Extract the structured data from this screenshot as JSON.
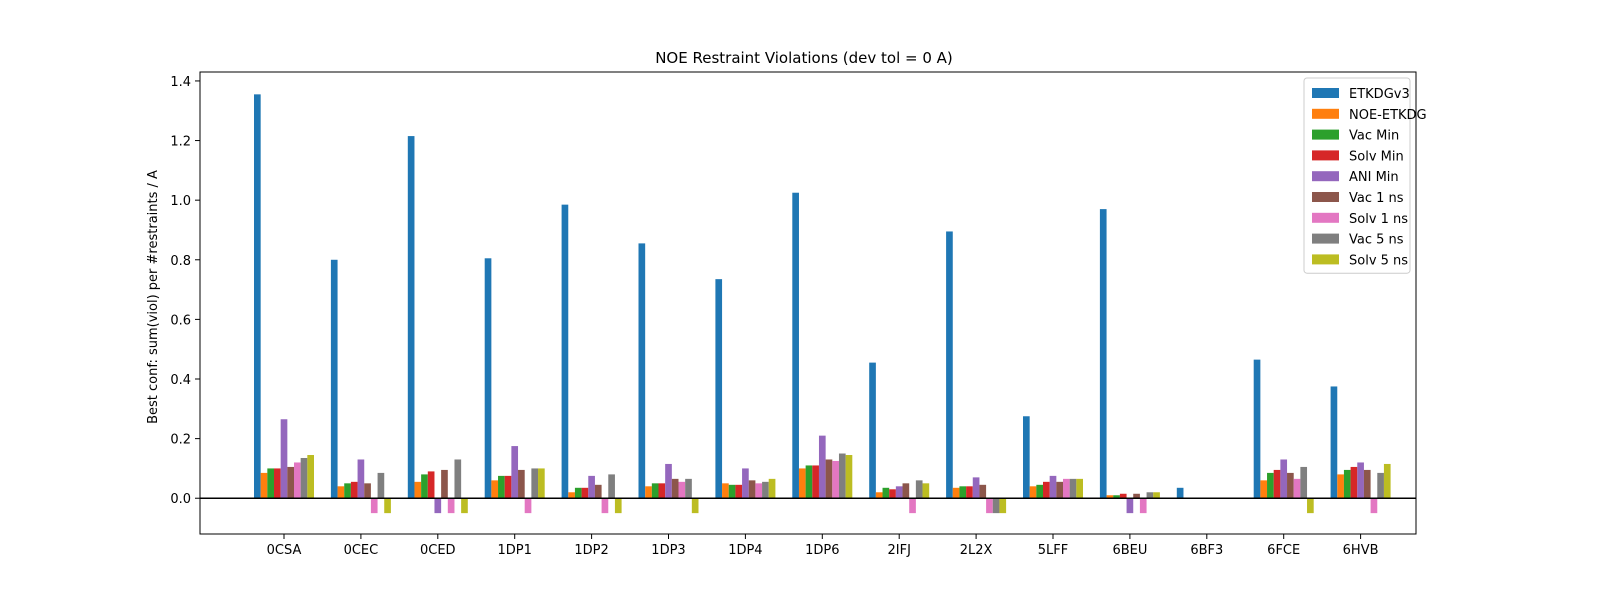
{
  "chart_data": {
    "type": "bar",
    "title": "NOE Restraint Violations (dev tol = 0 A)",
    "xlabel": "",
    "ylabel": "Best conf: sum(viol) per #restraints / A",
    "ylim": [
      -0.12,
      1.43
    ],
    "yticks": [
      0.0,
      0.2,
      0.4,
      0.6,
      0.8,
      1.0,
      1.2,
      1.4
    ],
    "ytick_labels": [
      "0.0",
      "0.2",
      "0.4",
      "0.6",
      "0.8",
      "1.0",
      "1.2",
      "1.4"
    ],
    "grid": false,
    "legend_position": "top-right",
    "categories": [
      "0CSA",
      "0CEC",
      "0CED",
      "1DP1",
      "1DP2",
      "1DP3",
      "1DP4",
      "1DP6",
      "2IFJ",
      "2L2X",
      "5LFF",
      "6BEU",
      "6BF3",
      "6FCE",
      "6HVB"
    ],
    "series": [
      {
        "name": "ETKDGv3",
        "color": "#1f77b4",
        "values": [
          1.355,
          0.8,
          1.215,
          0.805,
          0.985,
          0.855,
          0.735,
          1.025,
          0.455,
          0.895,
          0.275,
          0.97,
          0.035,
          0.465,
          0.375
        ]
      },
      {
        "name": "NOE-ETKDG",
        "color": "#ff7f0e",
        "values": [
          0.085,
          0.04,
          0.055,
          0.06,
          0.02,
          0.04,
          0.05,
          0.1,
          0.02,
          0.035,
          0.04,
          0.01,
          0.0,
          0.06,
          0.08
        ]
      },
      {
        "name": "Vac Min",
        "color": "#2ca02c",
        "values": [
          0.1,
          0.05,
          0.08,
          0.075,
          0.035,
          0.05,
          0.045,
          0.11,
          0.035,
          0.04,
          0.045,
          0.01,
          0.0,
          0.085,
          0.095
        ]
      },
      {
        "name": "Solv Min",
        "color": "#d62728",
        "values": [
          0.1,
          0.055,
          0.09,
          0.075,
          0.035,
          0.05,
          0.045,
          0.11,
          0.03,
          0.04,
          0.055,
          0.015,
          0.0,
          0.095,
          0.105
        ]
      },
      {
        "name": "ANI Min",
        "color": "#9467bd",
        "values": [
          0.265,
          0.13,
          -0.05,
          0.175,
          0.075,
          0.115,
          0.1,
          0.21,
          0.04,
          0.07,
          0.075,
          -0.05,
          0.0,
          0.13,
          0.12
        ]
      },
      {
        "name": "Vac 1 ns",
        "color": "#8c564b",
        "values": [
          0.105,
          0.05,
          0.095,
          0.095,
          0.045,
          0.065,
          0.06,
          0.13,
          0.05,
          0.045,
          0.055,
          0.015,
          0.0,
          0.085,
          0.095
        ]
      },
      {
        "name": "Solv 1 ns",
        "color": "#e377c2",
        "values": [
          0.12,
          -0.05,
          -0.05,
          -0.05,
          -0.05,
          0.055,
          0.05,
          0.125,
          -0.05,
          -0.05,
          0.065,
          -0.05,
          0.0,
          0.065,
          -0.05
        ]
      },
      {
        "name": "Vac 5 ns",
        "color": "#7f7f7f",
        "values": [
          0.135,
          0.085,
          0.13,
          0.1,
          0.08,
          0.065,
          0.055,
          0.15,
          0.06,
          -0.05,
          0.065,
          0.02,
          0.0,
          0.105,
          0.085
        ]
      },
      {
        "name": "Solv 5 ns",
        "color": "#bcbd22",
        "values": [
          0.145,
          -0.05,
          -0.05,
          0.1,
          -0.05,
          -0.05,
          0.065,
          0.145,
          0.05,
          -0.05,
          0.065,
          0.02,
          0.0,
          -0.05,
          0.115
        ]
      }
    ]
  }
}
